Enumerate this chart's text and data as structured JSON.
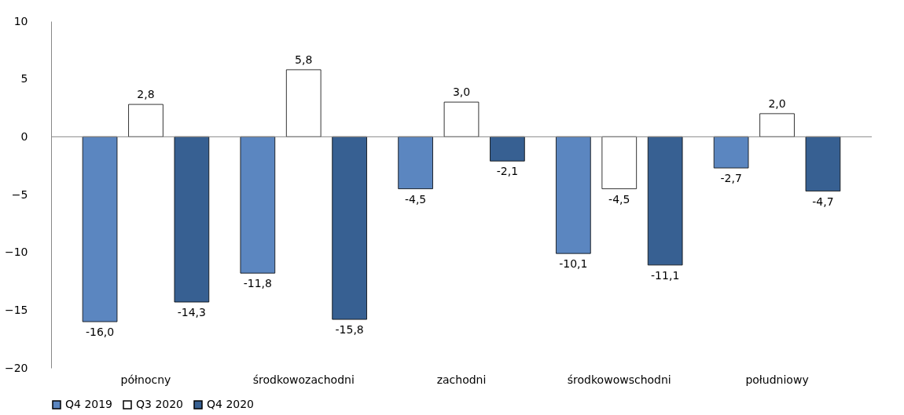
{
  "chart_data": {
    "type": "bar",
    "categories": [
      "północny",
      "środkowozachodni",
      "zachodni",
      "środkowowschodni",
      "południowy"
    ],
    "series": [
      {
        "name": "Q4 2019",
        "color": "#5b86c0",
        "values": [
          -16.0,
          -11.8,
          -4.5,
          -10.1,
          -2.7
        ],
        "value_labels": [
          "-16,0",
          "-11,8",
          "-4,5",
          "-10,1",
          "-2,7"
        ]
      },
      {
        "name": "Q3 2020",
        "color": "#ffffff",
        "values": [
          2.8,
          5.8,
          3.0,
          -4.5,
          2.0
        ],
        "value_labels": [
          "2,8",
          "5,8",
          "3,0",
          "-4,5",
          "2,0"
        ]
      },
      {
        "name": "Q4 2020",
        "color": "#376092",
        "values": [
          -14.3,
          -15.8,
          -2.1,
          -11.1,
          -4.7
        ],
        "value_labels": [
          "-14,3",
          "-15,8",
          "-2,1",
          "-11,1",
          "-4,7"
        ]
      }
    ],
    "ylim": [
      -20,
      10
    ],
    "yticks": [
      -20,
      -15,
      -10,
      -5,
      0,
      5,
      10
    ],
    "legend": "bottom"
  }
}
